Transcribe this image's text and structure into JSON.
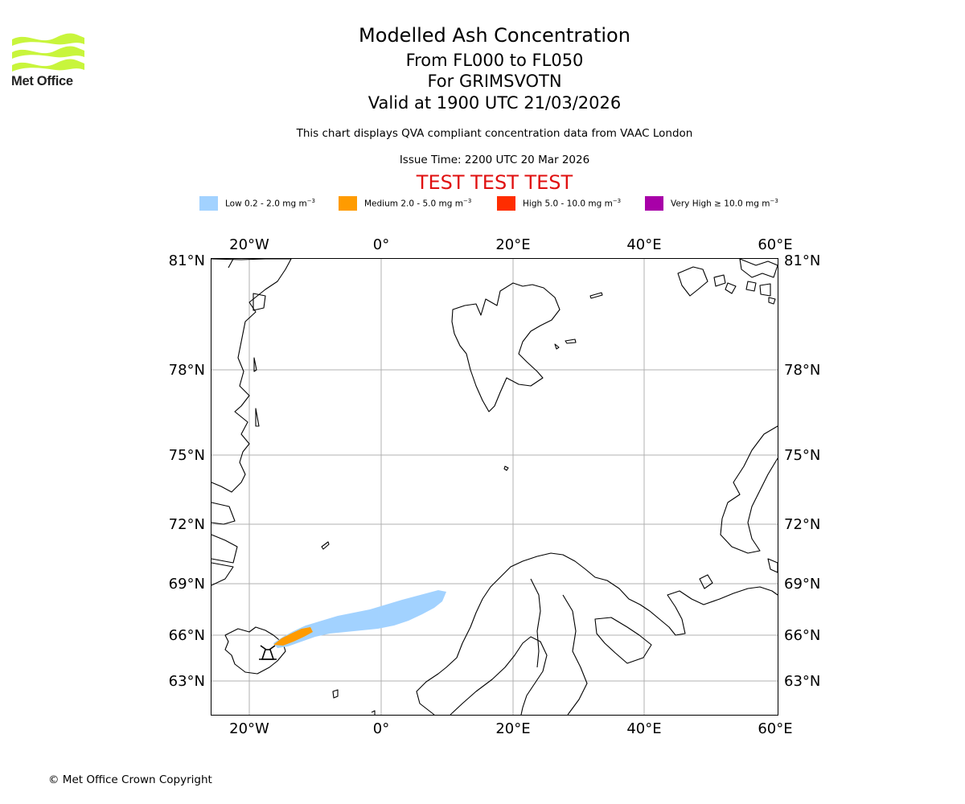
{
  "branding": {
    "logo_text": "Met Office",
    "logo_color": "#c8f53c"
  },
  "header": {
    "title": "Modelled Ash Concentration",
    "flight_levels": "From FL000 to FL050",
    "volcano": "For GRIMSVOTN",
    "valid_time": "Valid at 1900 UTC 21/03/2026",
    "description": "This chart displays QVA compliant concentration data from VAAC London",
    "issue_time": "Issue Time: 2200 UTC 20 Mar 2026",
    "test_banner": "TEST TEST TEST",
    "test_color": "#e01010"
  },
  "legend": [
    {
      "label": "Low 0.2 - 2.0 mg m",
      "color": "#a2d2ff"
    },
    {
      "label": "Medium 2.0 - 5.0 mg m",
      "color": "#ff9b00"
    },
    {
      "label": "High 5.0 - 10.0 mg m",
      "color": "#ff2d00"
    },
    {
      "label": "Very High ≥ 10.0 mg m",
      "color": "#a800a8"
    }
  ],
  "legend_unit_exponent": "−3",
  "map": {
    "lon_labels": [
      "20°W",
      "0°",
      "20°E",
      "40°E",
      "60°E"
    ],
    "lat_labels": [
      "81°N",
      "78°N",
      "75°N",
      "72°N",
      "69°N",
      "66°N",
      "63°N"
    ],
    "grid_color": "#b0b0b0",
    "volcano_marker": "volcano-icon"
  },
  "footer": {
    "copyright": "© Met Office Crown Copyright"
  }
}
